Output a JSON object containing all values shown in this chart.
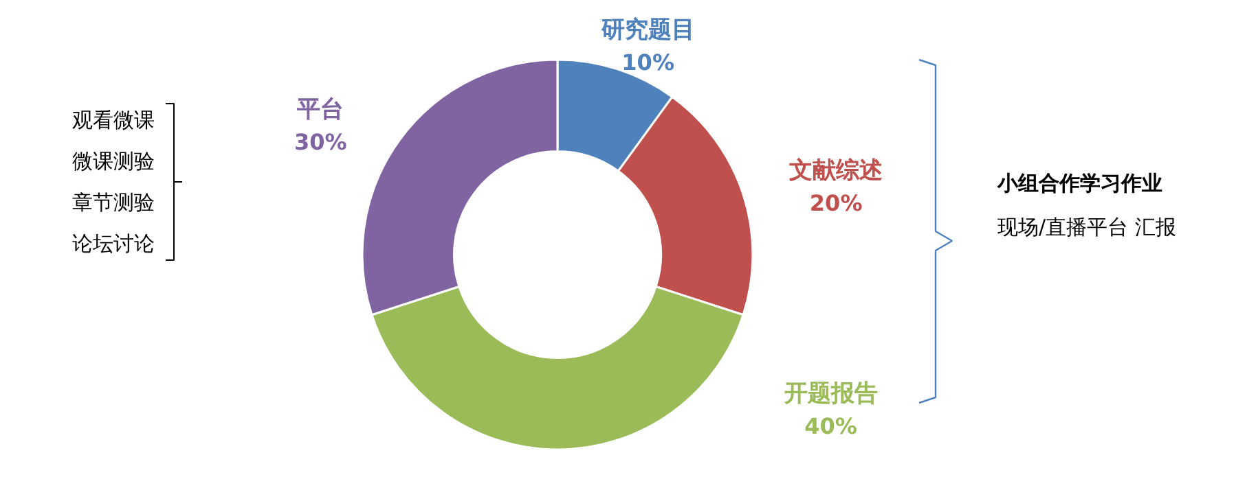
{
  "chart_data": {
    "type": "donut",
    "categories": [
      "研究题目",
      "文献综述",
      "开题报告",
      "平台"
    ],
    "values": [
      10,
      20,
      40,
      30
    ],
    "value_labels": [
      "10%",
      "20%",
      "40%",
      "30%"
    ],
    "colors": [
      "#4f81bd",
      "#c0504d",
      "#9bbb59",
      "#8064a2"
    ],
    "legend": false,
    "annotations": [
      "观看微课",
      "微课测验",
      "章节测验",
      "论坛讨论",
      "小组合作学习作业",
      "现场/直播平台 汇报"
    ]
  }
}
